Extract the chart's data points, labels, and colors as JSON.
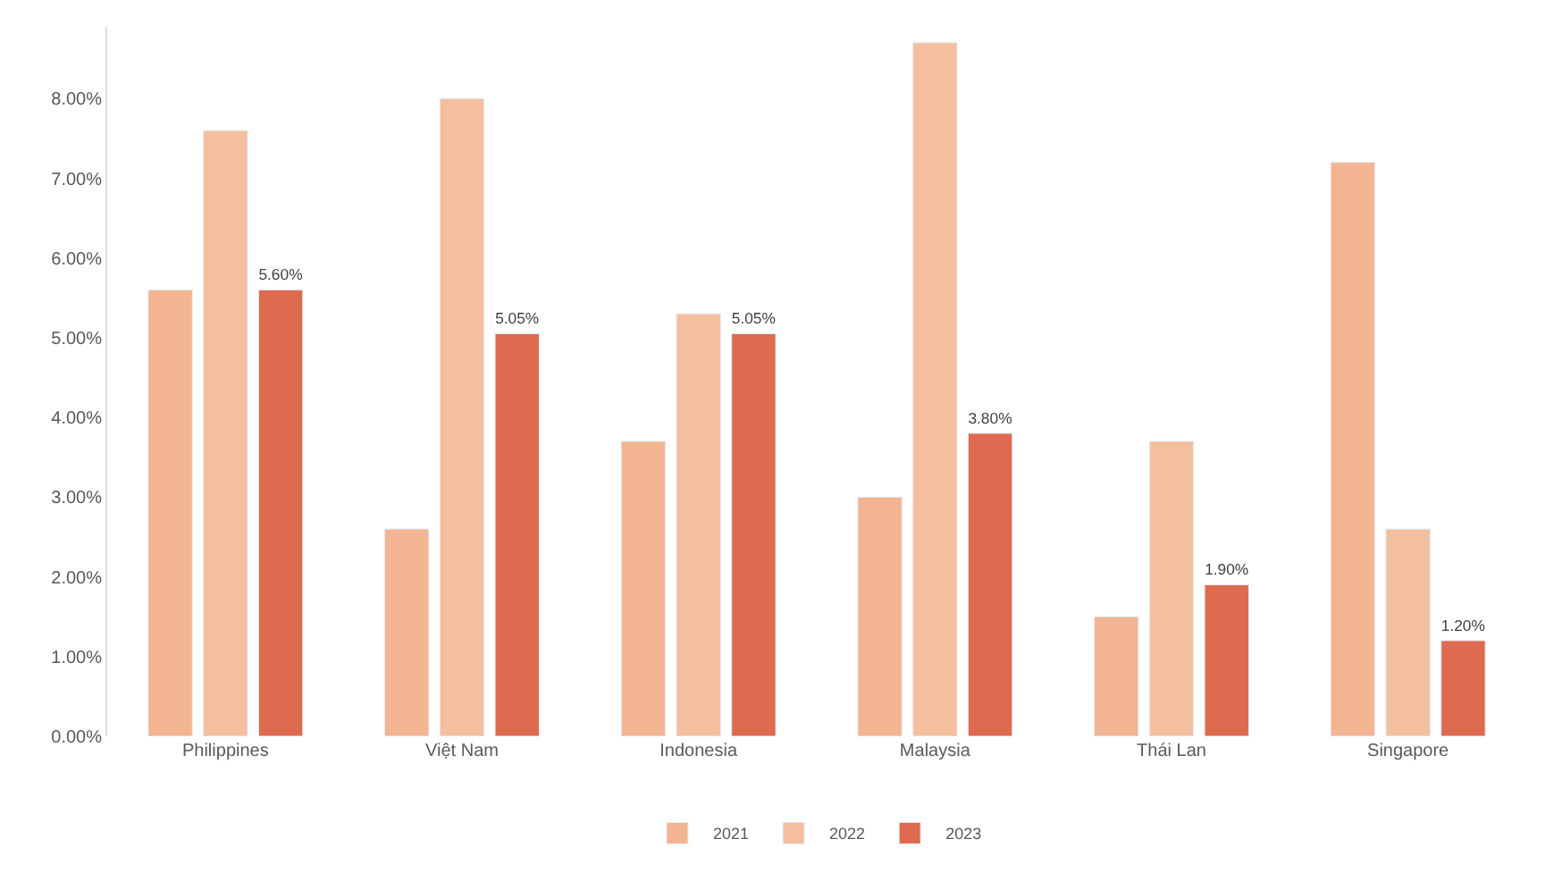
{
  "chart_data": {
    "type": "bar",
    "categories": [
      "Philippines",
      "Việt Nam",
      "Indonesia",
      "Malaysia",
      "Thái Lan",
      "Singapore"
    ],
    "series": [
      {
        "name": "2021",
        "color": "#f3b591",
        "values": [
          5.6,
          2.6,
          3.7,
          3.0,
          1.5,
          7.2
        ]
      },
      {
        "name": "2022",
        "color": "#f4bf9f",
        "values": [
          7.6,
          8.0,
          5.3,
          8.7,
          3.7,
          2.6
        ]
      },
      {
        "name": "2023",
        "color": "#de6a4f",
        "values": [
          5.6,
          5.05,
          5.05,
          3.8,
          1.9,
          1.2
        ],
        "value_labels": [
          "5.60%",
          "5.05%",
          "5.05%",
          "3.80%",
          "1.90%",
          "1.20%"
        ]
      }
    ],
    "ylim": [
      0,
      8.9
    ],
    "yticks": [
      {
        "value": 0,
        "label": "0.00%"
      },
      {
        "value": 1,
        "label": "1.00%"
      },
      {
        "value": 2,
        "label": "2.00%"
      },
      {
        "value": 3,
        "label": "3.00%"
      },
      {
        "value": 4,
        "label": "4.00%"
      },
      {
        "value": 5,
        "label": "5.00%"
      },
      {
        "value": 6,
        "label": "6.00%"
      },
      {
        "value": 7,
        "label": "7.00%"
      },
      {
        "value": 8,
        "label": "8.00%"
      }
    ],
    "legend": "bottom"
  }
}
